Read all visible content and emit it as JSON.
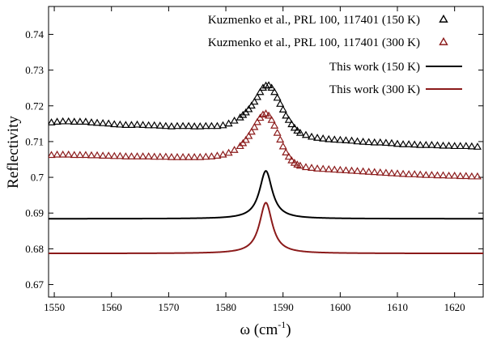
{
  "chart_data": {
    "type": "line",
    "title": "",
    "xlabel": "ω (cm",
    "xlabel_sup": "-1",
    "xlabel_close": ")",
    "ylabel": "Reflectivity",
    "xlim": [
      1549,
      1625
    ],
    "ylim": [
      0.6665,
      0.7478
    ],
    "x_ticks": [
      1550,
      1560,
      1570,
      1580,
      1590,
      1600,
      1610,
      1620
    ],
    "x_tick_labels": [
      "1550",
      "1560",
      "1570",
      "1580",
      "1590",
      "1600",
      "1610",
      "1620"
    ],
    "y_ticks": [
      0.67,
      0.68,
      0.69,
      0.7,
      0.71,
      0.72,
      0.73,
      0.74
    ],
    "y_tick_labels": [
      "0.67",
      "0.68",
      "0.69",
      "0.7",
      "0.71",
      "0.72",
      "0.73",
      "0.74"
    ],
    "grid": false,
    "legend_position": "top-right",
    "series": [
      {
        "name": "Kuzmenko et al., PRL 100, 117401 (150 K)",
        "style": "triangles",
        "color": "#000000",
        "x": [
          1549.5,
          1550.5,
          1551.5,
          1552.5,
          1553.5,
          1554.5,
          1555.5,
          1556.5,
          1557.5,
          1558.5,
          1559.5,
          1560.5,
          1561.5,
          1562.5,
          1563.5,
          1564.5,
          1565.5,
          1566.5,
          1567.5,
          1568.5,
          1569.5,
          1570.5,
          1571.5,
          1572.5,
          1573.5,
          1574.5,
          1575.5,
          1576.5,
          1577.5,
          1578.5,
          1579.5,
          1580.5,
          1581.5,
          1582.5,
          1583,
          1583.5,
          1584,
          1584.5,
          1585,
          1585.5,
          1586,
          1586.5,
          1587,
          1587.5,
          1588,
          1588.5,
          1589,
          1589.5,
          1590,
          1590.5,
          1591,
          1591.5,
          1592,
          1592.5,
          1593,
          1594,
          1595,
          1596,
          1597,
          1598,
          1599,
          1600,
          1601,
          1602,
          1603,
          1604,
          1605,
          1606,
          1607,
          1608,
          1609,
          1610,
          1611,
          1612,
          1613,
          1614,
          1615,
          1616,
          1617,
          1618,
          1619,
          1620,
          1621,
          1622,
          1623,
          1624
        ],
        "y": [
          0.7153,
          0.7155,
          0.7156,
          0.7156,
          0.7155,
          0.7155,
          0.7155,
          0.7153,
          0.7152,
          0.7151,
          0.715,
          0.7148,
          0.7147,
          0.7146,
          0.7146,
          0.7147,
          0.7146,
          0.7145,
          0.7145,
          0.7144,
          0.7143,
          0.7142,
          0.7143,
          0.7143,
          0.7143,
          0.7142,
          0.7142,
          0.7143,
          0.7143,
          0.7143,
          0.7145,
          0.715,
          0.7158,
          0.7167,
          0.7174,
          0.7181,
          0.719,
          0.72,
          0.7211,
          0.7224,
          0.7238,
          0.725,
          0.7256,
          0.7257,
          0.725,
          0.7238,
          0.7222,
          0.7205,
          0.7189,
          0.7172,
          0.716,
          0.7148,
          0.7138,
          0.713,
          0.7124,
          0.7118,
          0.7113,
          0.711,
          0.7108,
          0.7106,
          0.7105,
          0.7104,
          0.7103,
          0.7102,
          0.71,
          0.7099,
          0.7098,
          0.7097,
          0.7097,
          0.7096,
          0.7095,
          0.7093,
          0.7092,
          0.7092,
          0.7091,
          0.709,
          0.709,
          0.709,
          0.7089,
          0.7088,
          0.7088,
          0.7087,
          0.7087,
          0.7087,
          0.7086,
          0.7085
        ]
      },
      {
        "name": "Kuzmenko et al., PRL 100, 117401 (300 K)",
        "style": "triangles",
        "color": "#8b1a1a",
        "x": [
          1549.5,
          1550.5,
          1551.5,
          1552.5,
          1553.5,
          1554.5,
          1555.5,
          1556.5,
          1557.5,
          1558.5,
          1559.5,
          1560.5,
          1561.5,
          1562.5,
          1563.5,
          1564.5,
          1565.5,
          1566.5,
          1567.5,
          1568.5,
          1569.5,
          1570.5,
          1571.5,
          1572.5,
          1573.5,
          1574.5,
          1575.5,
          1576.5,
          1577.5,
          1578.5,
          1579.5,
          1580.5,
          1581.5,
          1582.5,
          1583,
          1583.5,
          1584,
          1584.5,
          1585,
          1585.5,
          1586,
          1586.5,
          1587,
          1587.5,
          1588,
          1588.5,
          1589,
          1589.5,
          1590,
          1590.5,
          1591,
          1591.5,
          1592,
          1592.5,
          1593,
          1594,
          1595,
          1596,
          1597,
          1598,
          1599,
          1600,
          1601,
          1602,
          1603,
          1604,
          1605,
          1606,
          1607,
          1608,
          1609,
          1610,
          1611,
          1612,
          1613,
          1614,
          1615,
          1616,
          1617,
          1618,
          1619,
          1620,
          1621,
          1622,
          1623,
          1624
        ],
        "y": [
          0.7062,
          0.7063,
          0.7063,
          0.7063,
          0.7062,
          0.7062,
          0.7062,
          0.7061,
          0.7061,
          0.706,
          0.706,
          0.7059,
          0.7059,
          0.7058,
          0.7058,
          0.7058,
          0.7058,
          0.7058,
          0.7057,
          0.7057,
          0.7057,
          0.7056,
          0.7056,
          0.7056,
          0.7056,
          0.7056,
          0.7056,
          0.7057,
          0.7058,
          0.706,
          0.7063,
          0.7068,
          0.7076,
          0.7087,
          0.7095,
          0.7104,
          0.7115,
          0.7127,
          0.714,
          0.7154,
          0.7166,
          0.7175,
          0.7178,
          0.7172,
          0.716,
          0.7144,
          0.7124,
          0.7105,
          0.7086,
          0.7069,
          0.7057,
          0.7047,
          0.704,
          0.7035,
          0.7032,
          0.7028,
          0.7026,
          0.7024,
          0.7023,
          0.7022,
          0.7021,
          0.702,
          0.7019,
          0.7018,
          0.7017,
          0.7016,
          0.7015,
          0.7014,
          0.7013,
          0.7012,
          0.7011,
          0.701,
          0.7009,
          0.7008,
          0.7008,
          0.7007,
          0.7006,
          0.7006,
          0.7005,
          0.7005,
          0.7004,
          0.7004,
          0.7003,
          0.7003,
          0.7002,
          0.7002
        ]
      },
      {
        "name": "This work (150 K)",
        "style": "line",
        "color": "#000000",
        "baseline": 0.6884,
        "peak_x": 1587.0,
        "peak_amplitude": 0.0134,
        "half_width": 1.35
      },
      {
        "name": "This work (300 K)",
        "style": "line",
        "color": "#8b1a1a",
        "baseline": 0.6787,
        "peak_x": 1587.0,
        "peak_amplitude": 0.0142,
        "half_width": 1.35
      }
    ]
  }
}
